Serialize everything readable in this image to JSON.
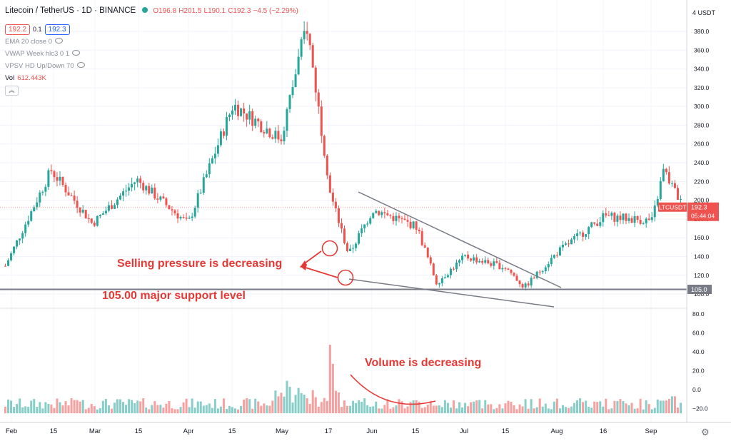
{
  "header": {
    "title": "Litecoin / TetherUS · 1D · BINANCE",
    "open": "O196.8",
    "high": "H201.5",
    "low": "L190.1",
    "close": "C192.3",
    "change": "−4.5 (−2.29%)",
    "bid": "192.2",
    "spread": "0.1",
    "ask": "192.3"
  },
  "indicators": {
    "ema": "EMA 20 close 0",
    "vwap": "VWAP Week hlc3 0 1",
    "vpsv": "VPSV HD Up/Down 70",
    "vol_label": "Vol",
    "vol_value": "612.443K"
  },
  "price_axis": {
    "unit": "USDT",
    "currency_label": "4",
    "ticks": [
      "380.0",
      "360.0",
      "340.0",
      "320.0",
      "300.0",
      "280.0",
      "260.0",
      "240.0",
      "220.0",
      "200.0",
      "180.0",
      "160.0",
      "140.0",
      "120.0",
      "100.0"
    ],
    "current_symbol": "LTCUSDT",
    "current_price": "192.3",
    "countdown": "05:44:04",
    "support_label": "105.0"
  },
  "volume_axis": {
    "ticks": [
      "80.0",
      "60.0",
      "40.0",
      "20.0",
      "0.0",
      "−20.0"
    ]
  },
  "time_axis": {
    "labels": [
      "Feb",
      "15",
      "Mar",
      "15",
      "Apr",
      "15",
      "May",
      "17",
      "Jun",
      "15",
      "Jul",
      "15",
      "Aug",
      "16",
      "Sep"
    ]
  },
  "annotations": {
    "selling": "Selling pressure is decreasing",
    "support": "105.00 major  support level",
    "volume": "Volume is decreasing"
  },
  "colors": {
    "up": "#26a69a",
    "down": "#ef5350",
    "annotation": "#e53935",
    "trendline": "#787b86"
  },
  "chart_data": {
    "type": "candlestick",
    "title": "Litecoin / TetherUS · 1D · BINANCE",
    "period": "1D",
    "x_range": [
      "Feb",
      "Sep"
    ],
    "y_range": [
      100,
      400
    ],
    "support_level": 105.0,
    "last_price": 192.3,
    "close_path": [
      {
        "time": "Feb",
        "price": 130
      },
      {
        "time": "Feb 15",
        "price": 232
      },
      {
        "time": "Mar",
        "price": 175
      },
      {
        "time": "Mar 15",
        "price": 222
      },
      {
        "time": "Apr",
        "price": 175
      },
      {
        "time": "Apr 15",
        "price": 302
      },
      {
        "time": "May",
        "price": 265
      },
      {
        "time": "May 10",
        "price": 388
      },
      {
        "time": "May 17",
        "price": 205
      },
      {
        "time": "May 20",
        "price": 142
      },
      {
        "time": "Jun",
        "price": 190
      },
      {
        "time": "Jun 15",
        "price": 172
      },
      {
        "time": "Jun 22",
        "price": 112
      },
      {
        "time": "Jul",
        "price": 140
      },
      {
        "time": "Jul 15",
        "price": 128
      },
      {
        "time": "Jul 20",
        "price": 107
      },
      {
        "time": "Aug",
        "price": 145
      },
      {
        "time": "Aug 16",
        "price": 183
      },
      {
        "time": "Sep",
        "price": 178
      },
      {
        "time": "Sep 5",
        "price": 232
      },
      {
        "time": "Sep 10",
        "price": 192
      }
    ],
    "volume_axis_range": [
      -20,
      80
    ]
  }
}
